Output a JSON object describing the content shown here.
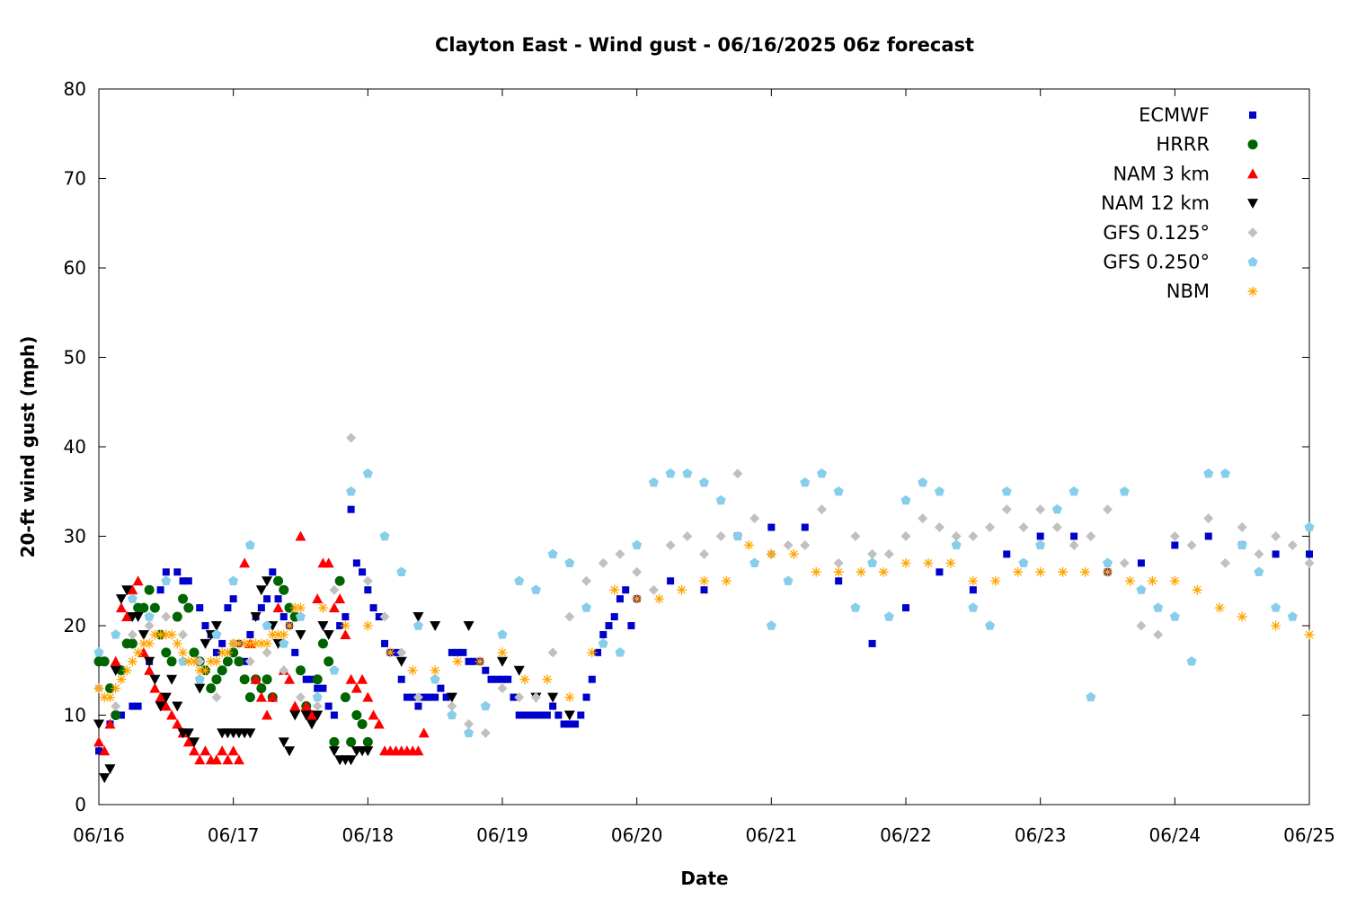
{
  "chart_data": {
    "type": "scatter",
    "title": "Clayton East - Wind gust - 06/16/2025 06z forecast",
    "xlabel": "Date",
    "ylabel": "20-ft wind gust (mph)",
    "xlim": [
      "06/16 00z",
      "06/25 00z"
    ],
    "ylim": [
      0,
      80
    ],
    "x_ticks": [
      "06/16",
      "06/17",
      "06/18",
      "06/19",
      "06/20",
      "06/21",
      "06/22",
      "06/23",
      "06/24",
      "06/25"
    ],
    "y_ticks": [
      0,
      10,
      20,
      30,
      40,
      50,
      60,
      70,
      80
    ],
    "grid": false,
    "legend_position": "top-right",
    "x_unit": "hours from 06/16 00z",
    "series": [
      {
        "name": "ECMWF",
        "marker": "square",
        "color": "#0000cc",
        "x": [
          0,
          2,
          4,
          6,
          7,
          9,
          11,
          12,
          14,
          15,
          16,
          18,
          19,
          20,
          21,
          22,
          23,
          24,
          25,
          26,
          27,
          28,
          29,
          30,
          31,
          32,
          33,
          34,
          35,
          36,
          37,
          38,
          39,
          40,
          41,
          42,
          43,
          44,
          45,
          46,
          47,
          48,
          49,
          50,
          51,
          52,
          53,
          54,
          55,
          56,
          57,
          58,
          59,
          60,
          61,
          62,
          63,
          64,
          65,
          66,
          67,
          68,
          69,
          70,
          71,
          72,
          73,
          74,
          75,
          76,
          77,
          78,
          79,
          80,
          81,
          82,
          83,
          84,
          85,
          86,
          87,
          88,
          89,
          90,
          91,
          92,
          93,
          94,
          95,
          96,
          102,
          108,
          114,
          120,
          126,
          132,
          138,
          144,
          150,
          156,
          162,
          168,
          174,
          180,
          186,
          192,
          198,
          204,
          210,
          216
        ],
        "y": [
          6,
          9,
          10,
          11,
          11,
          16,
          24,
          26,
          26,
          25,
          25,
          22,
          20,
          19,
          17,
          18,
          22,
          23,
          18,
          16,
          19,
          21,
          22,
          23,
          26,
          23,
          21,
          20,
          17,
          15,
          14,
          14,
          13,
          13,
          11,
          10,
          20,
          21,
          33,
          27,
          26,
          24,
          22,
          21,
          18,
          17,
          17,
          14,
          12,
          12,
          11,
          12,
          12,
          12,
          13,
          12,
          17,
          17,
          17,
          16,
          16,
          16,
          15,
          14,
          14,
          14,
          14,
          12,
          10,
          10,
          10,
          10,
          10,
          10,
          11,
          10,
          9,
          9,
          9,
          10,
          12,
          14,
          17,
          19,
          20,
          21,
          23,
          24,
          20,
          23,
          25,
          24,
          30,
          31,
          31,
          25,
          18,
          22,
          26,
          24,
          28,
          30,
          30,
          26,
          27,
          29,
          30,
          29,
          28,
          28
        ]
      },
      {
        "name": "HRRR",
        "marker": "circle",
        "color": "#006400",
        "x": [
          0,
          1,
          2,
          3,
          4,
          5,
          6,
          7,
          8,
          9,
          10,
          11,
          12,
          13,
          14,
          15,
          16,
          17,
          18,
          19,
          20,
          21,
          22,
          23,
          24,
          25,
          26,
          27,
          28,
          29,
          30,
          31,
          32,
          33,
          34,
          35,
          36,
          37,
          38,
          39,
          40,
          41,
          42,
          43,
          44,
          45,
          46,
          47,
          48
        ],
        "y": [
          16,
          16,
          13,
          10,
          15,
          18,
          18,
          22,
          22,
          24,
          22,
          19,
          17,
          16,
          21,
          23,
          22,
          17,
          16,
          15,
          13,
          14,
          15,
          16,
          17,
          16,
          14,
          12,
          14,
          13,
          14,
          12,
          25,
          24,
          22,
          21,
          15,
          11,
          10,
          14,
          18,
          16,
          7,
          25,
          12,
          7,
          10,
          9,
          7
        ],
        "y_note": "approximate"
      },
      {
        "name": "NAM 3 km",
        "marker": "triangle-up",
        "color": "#ff0000",
        "x": [
          0,
          1,
          2,
          3,
          4,
          5,
          6,
          7,
          8,
          9,
          10,
          11,
          12,
          13,
          14,
          15,
          16,
          17,
          18,
          19,
          20,
          21,
          22,
          23,
          24,
          25,
          26,
          27,
          28,
          29,
          30,
          31,
          32,
          33,
          34,
          35,
          36,
          37,
          38,
          39,
          40,
          41,
          42,
          43,
          44,
          45,
          46,
          47,
          48,
          49,
          50,
          51,
          52,
          53,
          54,
          55,
          56,
          57,
          58
        ],
        "y": [
          7,
          6,
          9,
          16,
          22,
          21,
          24,
          25,
          17,
          15,
          13,
          12,
          11,
          10,
          9,
          8,
          7,
          6,
          5,
          6,
          5,
          5,
          6,
          5,
          6,
          5,
          27,
          18,
          14,
          12,
          10,
          12,
          22,
          15,
          14,
          11,
          30,
          11,
          10,
          23,
          27,
          27,
          22,
          23,
          19,
          14,
          13,
          14,
          12,
          10,
          9,
          6,
          6,
          6,
          6,
          6,
          6,
          6,
          8
        ],
        "y_note": "approximate"
      },
      {
        "name": "NAM 12 km",
        "marker": "triangle-down",
        "color": "#000000",
        "x": [
          0,
          1,
          2,
          3,
          4,
          5,
          6,
          7,
          8,
          9,
          10,
          11,
          12,
          13,
          14,
          15,
          16,
          17,
          18,
          19,
          20,
          21,
          22,
          23,
          24,
          25,
          26,
          27,
          28,
          29,
          30,
          31,
          32,
          33,
          34,
          35,
          36,
          37,
          38,
          39,
          40,
          41,
          42,
          43,
          44,
          45,
          46,
          47,
          48,
          54,
          57,
          60,
          63,
          66,
          72,
          75,
          78,
          81,
          84
        ],
        "y": [
          9,
          3,
          4,
          15,
          23,
          24,
          21,
          21,
          19,
          16,
          14,
          11,
          12,
          14,
          11,
          8,
          8,
          7,
          13,
          18,
          19,
          20,
          8,
          8,
          8,
          8,
          8,
          8,
          21,
          24,
          25,
          20,
          18,
          7,
          6,
          10,
          19,
          10,
          9,
          10,
          20,
          19,
          6,
          5,
          5,
          5,
          6,
          6,
          6,
          16,
          21,
          20,
          12,
          20,
          16,
          15,
          12,
          12,
          10
        ],
        "y_note": "approximate"
      },
      {
        "name": "GFS 0.125°",
        "marker": "diamond",
        "color": "#c0c0c0",
        "x": [
          0,
          3,
          6,
          9,
          12,
          15,
          18,
          21,
          24,
          27,
          30,
          33,
          36,
          39,
          42,
          45,
          48,
          51,
          54,
          57,
          60,
          63,
          66,
          69,
          72,
          75,
          78,
          81,
          84,
          87,
          90,
          93,
          96,
          99,
          102,
          105,
          108,
          111,
          114,
          117,
          120,
          123,
          126,
          129,
          132,
          135,
          138,
          141,
          144,
          147,
          150,
          153,
          156,
          159,
          162,
          165,
          168,
          171,
          174,
          177,
          180,
          183,
          186,
          189,
          192,
          195,
          198,
          201,
          204,
          207,
          210,
          213,
          216
        ],
        "y": [
          13,
          11,
          19,
          20,
          21,
          19,
          16,
          12,
          18,
          16,
          17,
          15,
          12,
          11,
          24,
          41,
          25,
          21,
          17,
          12,
          14,
          11,
          9,
          8,
          13,
          12,
          12,
          17,
          21,
          25,
          27,
          28,
          26,
          24,
          29,
          30,
          28,
          30,
          37,
          32,
          28,
          29,
          29,
          33,
          27,
          30,
          28,
          28,
          30,
          32,
          31,
          30,
          30,
          31,
          33,
          31,
          33,
          31,
          29,
          30,
          33,
          27,
          20,
          19,
          30,
          29,
          32,
          27,
          31,
          28,
          30,
          29,
          27
        ],
        "y_note": "approximate"
      },
      {
        "name": "GFS 0.250°",
        "marker": "pentagon",
        "color": "#87ceeb",
        "x": [
          0,
          3,
          6,
          9,
          12,
          15,
          18,
          21,
          24,
          27,
          30,
          33,
          36,
          39,
          42,
          45,
          48,
          51,
          54,
          57,
          60,
          63,
          66,
          69,
          72,
          75,
          78,
          81,
          84,
          87,
          90,
          93,
          96,
          99,
          102,
          105,
          108,
          111,
          114,
          117,
          120,
          123,
          126,
          129,
          132,
          135,
          138,
          141,
          144,
          147,
          150,
          153,
          156,
          159,
          162,
          165,
          168,
          171,
          174,
          177,
          180,
          183,
          186,
          189,
          192,
          195,
          198,
          201,
          204,
          207,
          210,
          213,
          216
        ],
        "y": [
          17,
          19,
          23,
          21,
          25,
          16,
          14,
          19,
          25,
          29,
          20,
          18,
          21,
          12,
          15,
          35,
          37,
          30,
          26,
          20,
          14,
          10,
          8,
          11,
          19,
          25,
          24,
          28,
          27,
          22,
          18,
          17,
          29,
          36,
          37,
          37,
          36,
          34,
          30,
          27,
          20,
          25,
          36,
          37,
          35,
          22,
          27,
          21,
          34,
          36,
          35,
          29,
          22,
          20,
          35,
          27,
          29,
          33,
          35,
          12,
          27,
          35,
          24,
          22,
          21,
          16,
          37,
          37,
          29,
          26,
          22,
          21,
          31
        ],
        "y_note": "approximate"
      },
      {
        "name": "NBM",
        "marker": "asterisk",
        "color": "#ffa500",
        "x": [
          0,
          1,
          2,
          3,
          4,
          5,
          6,
          7,
          8,
          9,
          10,
          11,
          12,
          13,
          14,
          15,
          16,
          17,
          18,
          19,
          20,
          21,
          22,
          23,
          24,
          25,
          26,
          27,
          28,
          29,
          30,
          31,
          32,
          33,
          34,
          35,
          36,
          40,
          44,
          48,
          52,
          56,
          60,
          64,
          68,
          72,
          76,
          80,
          84,
          88,
          92,
          96,
          100,
          104,
          108,
          112,
          116,
          120,
          124,
          128,
          132,
          136,
          140,
          144,
          148,
          152,
          156,
          160,
          164,
          168,
          172,
          176,
          180,
          184,
          188,
          192,
          196,
          200,
          204,
          210,
          216
        ],
        "y": [
          13,
          12,
          12,
          13,
          14,
          15,
          16,
          17,
          18,
          18,
          19,
          19,
          19,
          19,
          18,
          17,
          16,
          16,
          15,
          15,
          16,
          16,
          17,
          17,
          18,
          18,
          18,
          18,
          18,
          18,
          18,
          19,
          19,
          19,
          20,
          22,
          22,
          22,
          20,
          20,
          17,
          15,
          15,
          16,
          16,
          17,
          14,
          14,
          12,
          17,
          24,
          23,
          23,
          24,
          25,
          25,
          29,
          28,
          28,
          26,
          26,
          26,
          26,
          27,
          27,
          27,
          25,
          25,
          26,
          26,
          26,
          26,
          26,
          25,
          25,
          25,
          24,
          22,
          21,
          20,
          19
        ],
        "y_note": "approximate"
      }
    ]
  }
}
